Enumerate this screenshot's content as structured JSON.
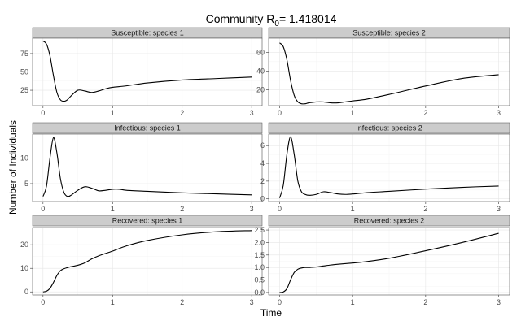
{
  "chart_data": {
    "type": "line",
    "title": {
      "prefix": "Community R",
      "subscript": "0",
      "suffix": "= 1.418014"
    },
    "xlabel": "Time",
    "ylabel": "Number of Individuals",
    "xlim": [
      -0.15,
      3.15
    ],
    "x_ticks": [
      0,
      1,
      2,
      3
    ],
    "grid": true,
    "colors": {
      "line": "#000000",
      "strip": "#cccccc",
      "panel_border": "#4d4d4d",
      "grid_major": "#e6e6e6",
      "grid_minor": "#f4f4f4"
    },
    "panels": [
      {
        "strip": "Susceptible: species 1",
        "ylim": [
          4,
          96
        ],
        "y_ticks": [
          25,
          50,
          75
        ],
        "series": [
          {
            "x": [
              0,
              0.05,
              0.1,
              0.15,
              0.2,
              0.25,
              0.3,
              0.35,
              0.4,
              0.5,
              0.6,
              0.7,
              0.8,
              0.9,
              1.0,
              1.2,
              1.5,
              2.0,
              2.5,
              3.0
            ],
            "y": [
              92,
              88,
              72,
              45,
              22,
              12,
              10,
              12,
              17,
              25,
              24,
              22,
              24,
              27,
              29,
              31,
              35,
              39,
              41,
              43
            ]
          }
        ]
      },
      {
        "strip": "Susceptible: species 2",
        "ylim": [
          3,
          75
        ],
        "y_ticks": [
          20,
          40,
          60
        ],
        "series": [
          {
            "x": [
              0,
              0.05,
              0.1,
              0.15,
              0.2,
              0.25,
              0.3,
              0.35,
              0.4,
              0.5,
              0.6,
              0.7,
              0.8,
              0.9,
              1.0,
              1.2,
              1.5,
              2.0,
              2.5,
              3.0
            ],
            "y": [
              70,
              66,
              52,
              30,
              14,
              7,
              5,
              5,
              6,
              7,
              7,
              6,
              6,
              7,
              8,
              10,
              15,
              24,
              32,
              36
            ]
          }
        ]
      },
      {
        "strip": "Infectious: species 1",
        "ylim": [
          1.5,
          14.7
        ],
        "y_ticks": [
          5,
          10
        ],
        "series": [
          {
            "x": [
              0,
              0.05,
              0.1,
              0.15,
              0.2,
              0.25,
              0.3,
              0.35,
              0.4,
              0.5,
              0.6,
              0.7,
              0.8,
              0.9,
              1.0,
              1.1,
              1.2,
              1.5,
              2.0,
              2.5,
              3.0
            ],
            "y": [
              2.5,
              4.5,
              10,
              14,
              11,
              6,
              3.3,
              2.5,
              2.7,
              3.7,
              4.4,
              4.1,
              3.6,
              3.7,
              3.9,
              3.9,
              3.7,
              3.5,
              3.2,
              3.0,
              2.8
            ]
          }
        ]
      },
      {
        "strip": "Infectious: species 2",
        "ylim": [
          -0.3,
          7.3
        ],
        "y_ticks": [
          0,
          2,
          4,
          6
        ],
        "series": [
          {
            "x": [
              0,
              0.05,
              0.1,
              0.15,
              0.2,
              0.25,
              0.3,
              0.35,
              0.4,
              0.5,
              0.6,
              0.7,
              0.8,
              0.9,
              1.0,
              1.2,
              1.5,
              2.0,
              2.5,
              3.0
            ],
            "y": [
              0.1,
              1.5,
              5,
              7,
              5,
              2,
              0.8,
              0.5,
              0.4,
              0.5,
              0.8,
              0.7,
              0.55,
              0.5,
              0.55,
              0.7,
              0.85,
              1.1,
              1.3,
              1.45
            ]
          }
        ]
      },
      {
        "strip": "Recovered: species 1",
        "ylim": [
          -1.3,
          27.3
        ],
        "y_ticks": [
          0,
          10,
          20
        ],
        "series": [
          {
            "x": [
              0,
              0.05,
              0.1,
              0.15,
              0.2,
              0.25,
              0.3,
              0.35,
              0.4,
              0.5,
              0.6,
              0.7,
              0.8,
              1.0,
              1.2,
              1.5,
              2.0,
              2.5,
              3.0
            ],
            "y": [
              0,
              0.3,
              1.5,
              4,
              7,
              9,
              9.8,
              10.3,
              10.7,
              11.3,
              12.3,
              14,
              15.3,
              17.3,
              19.5,
              21.8,
              24.2,
              25.5,
              26
            ]
          }
        ]
      },
      {
        "strip": "Recovered: species 2",
        "ylim": [
          -0.1,
          2.6
        ],
        "y_ticks": [
          0,
          0.5,
          1,
          1.5,
          2,
          2.5
        ],
        "y_tick_labels": [
          "0.0",
          "0.5",
          "1.0",
          "1.5",
          "2.0",
          "2.5"
        ],
        "series": [
          {
            "x": [
              0,
              0.05,
              0.1,
              0.15,
              0.2,
              0.25,
              0.3,
              0.35,
              0.4,
              0.5,
              0.6,
              0.7,
              0.8,
              1.0,
              1.2,
              1.5,
              2.0,
              2.5,
              3.0
            ],
            "y": [
              0,
              0.02,
              0.15,
              0.5,
              0.8,
              0.93,
              0.98,
              1.0,
              1.0,
              1.02,
              1.06,
              1.1,
              1.13,
              1.18,
              1.24,
              1.37,
              1.67,
              2.0,
              2.37
            ]
          }
        ]
      }
    ]
  }
}
